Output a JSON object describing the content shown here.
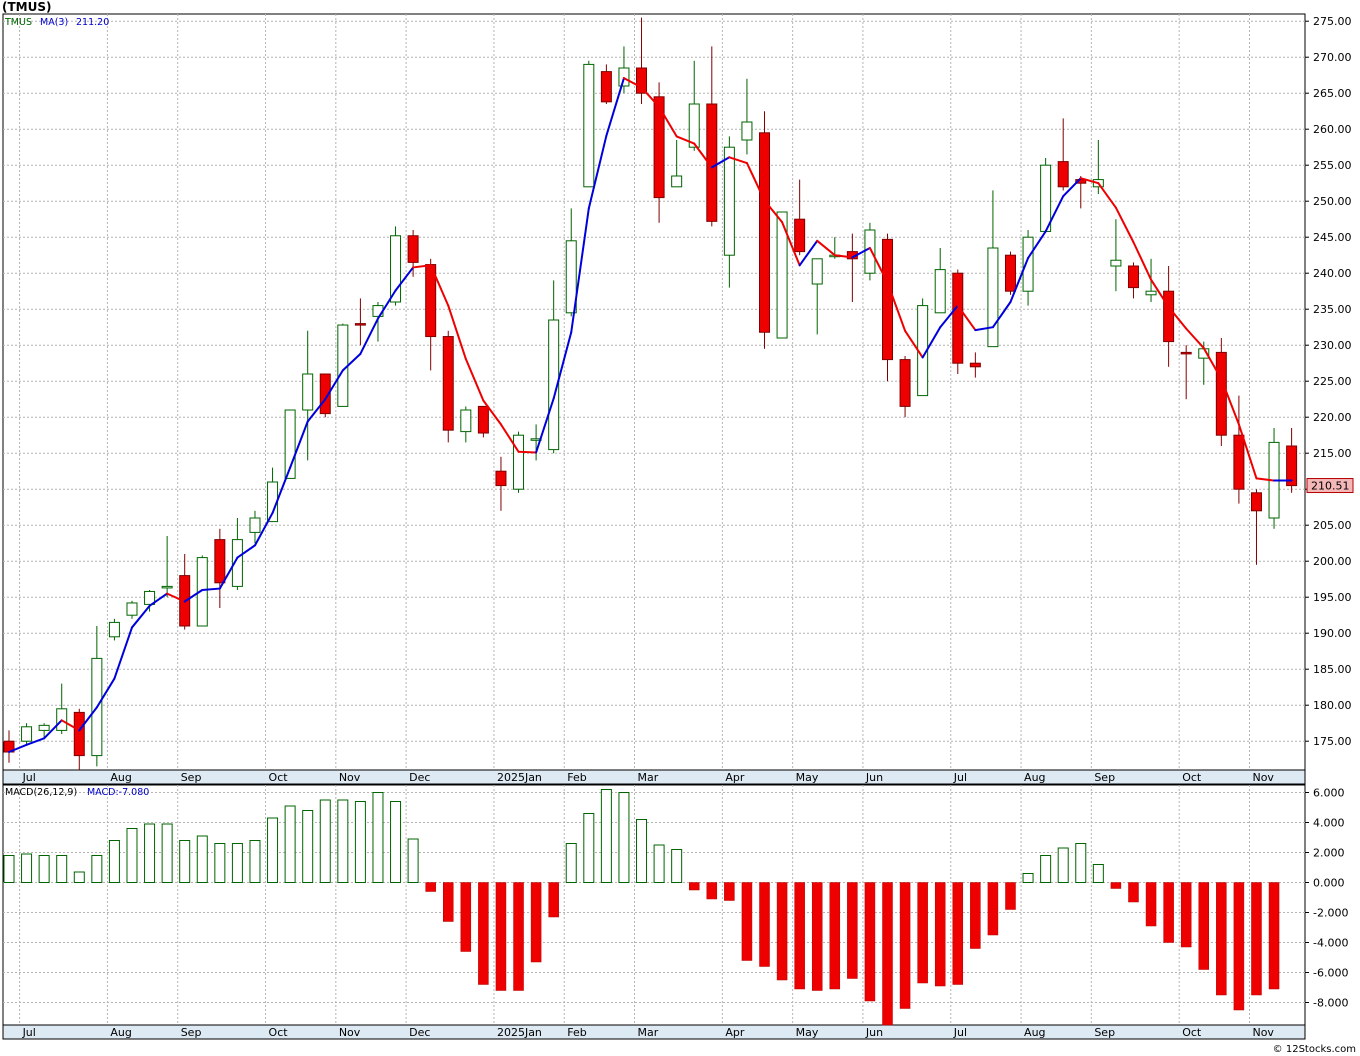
{
  "title": "(TMUS)",
  "credit": "© 12Stocks.com",
  "chart_data": [
    {
      "type": "candlestick",
      "legend": {
        "symbol": "TMUS",
        "ma_label": "MA(3)",
        "ma_value": "211.20"
      },
      "last_price_label": "210.51",
      "ylim": [
        171,
        276
      ],
      "y_ticks": [
        175,
        180,
        185,
        190,
        195,
        200,
        205,
        210,
        215,
        220,
        225,
        230,
        235,
        240,
        245,
        250,
        255,
        260,
        265,
        270,
        275
      ],
      "y_tick_labels": [
        "175.00",
        "180.00",
        "185.00",
        "190.00",
        "195.00",
        "200.00",
        "205.00",
        "210.00",
        "215.00",
        "220.00",
        "225.00",
        "230.00",
        "235.00",
        "240.00",
        "245.00",
        "250.00",
        "255.00",
        "260.00",
        "265.00",
        "270.00",
        "275.00"
      ],
      "month_labels": [
        {
          "label": "Jul",
          "week": 1
        },
        {
          "label": "Aug",
          "week": 6
        },
        {
          "label": "Sep",
          "week": 10
        },
        {
          "label": "Oct",
          "week": 15
        },
        {
          "label": "Nov",
          "week": 19
        },
        {
          "label": "Dec",
          "week": 23
        },
        {
          "label": "2025Jan",
          "week": 28
        },
        {
          "label": "Feb",
          "week": 32
        },
        {
          "label": "Mar",
          "week": 36
        },
        {
          "label": "Apr",
          "week": 41
        },
        {
          "label": "May",
          "week": 45
        },
        {
          "label": "Jun",
          "week": 49
        },
        {
          "label": "Jul",
          "week": 54
        },
        {
          "label": "Aug",
          "week": 58
        },
        {
          "label": "Sep",
          "week": 62
        },
        {
          "label": "Oct",
          "week": 67
        },
        {
          "label": "Nov",
          "week": 71
        }
      ],
      "candles": [
        {
          "o": 175,
          "h": 176.5,
          "l": 172,
          "c": 173.5
        },
        {
          "o": 175,
          "h": 177.5,
          "l": 174.5,
          "c": 177
        },
        {
          "o": 176.5,
          "h": 177.5,
          "l": 175.5,
          "c": 177.2
        },
        {
          "o": 176.5,
          "h": 183,
          "l": 176,
          "c": 179.5
        },
        {
          "o": 179,
          "h": 179.5,
          "l": 171,
          "c": 173
        },
        {
          "o": 173,
          "h": 191,
          "l": 171.5,
          "c": 186.5
        },
        {
          "o": 189.5,
          "h": 192,
          "l": 189,
          "c": 191.5
        },
        {
          "o": 192.5,
          "h": 194.5,
          "l": 192,
          "c": 194.2
        },
        {
          "o": 194,
          "h": 196,
          "l": 193,
          "c": 195.8
        },
        {
          "o": 196.5,
          "h": 203.5,
          "l": 195,
          "c": 196.5
        },
        {
          "o": 198,
          "h": 201,
          "l": 190.5,
          "c": 191
        },
        {
          "o": 191,
          "h": 200.8,
          "l": 191,
          "c": 200.5
        },
        {
          "o": 203,
          "h": 204.5,
          "l": 193.5,
          "c": 197
        },
        {
          "o": 196.5,
          "h": 206,
          "l": 196,
          "c": 203
        },
        {
          "o": 204,
          "h": 207,
          "l": 202.5,
          "c": 206
        },
        {
          "o": 205.5,
          "h": 213,
          "l": 205.5,
          "c": 211
        },
        {
          "o": 211.5,
          "h": 221,
          "l": 211.5,
          "c": 221
        },
        {
          "o": 221,
          "h": 232,
          "l": 214,
          "c": 226
        },
        {
          "o": 226,
          "h": 226,
          "l": 220,
          "c": 220.5
        },
        {
          "o": 221.5,
          "h": 233,
          "l": 221.5,
          "c": 232.8
        },
        {
          "o": 233,
          "h": 236.5,
          "l": 230,
          "c": 232.8
        },
        {
          "o": 234,
          "h": 236,
          "l": 230.5,
          "c": 235.5
        },
        {
          "o": 236,
          "h": 246.5,
          "l": 235.5,
          "c": 245.2
        },
        {
          "o": 245.2,
          "h": 246,
          "l": 239.5,
          "c": 241.5
        },
        {
          "o": 241.2,
          "h": 242,
          "l": 226.5,
          "c": 231.2
        },
        {
          "o": 231.2,
          "h": 232,
          "l": 216.5,
          "c": 218.2
        },
        {
          "o": 218,
          "h": 221.5,
          "l": 216.5,
          "c": 221
        },
        {
          "o": 221.5,
          "h": 221.5,
          "l": 217.2,
          "c": 217.8
        },
        {
          "o": 212.5,
          "h": 214.5,
          "l": 207,
          "c": 210.5
        },
        {
          "o": 210,
          "h": 218,
          "l": 209.5,
          "c": 217.5
        },
        {
          "o": 216.8,
          "h": 219,
          "l": 214,
          "c": 217
        },
        {
          "o": 215.5,
          "h": 239,
          "l": 215,
          "c": 233.5
        },
        {
          "o": 234.5,
          "h": 249,
          "l": 234,
          "c": 244.5
        },
        {
          "o": 252,
          "h": 269.5,
          "l": 252,
          "c": 269
        },
        {
          "o": 268,
          "h": 269,
          "l": 263.5,
          "c": 263.8
        },
        {
          "o": 266,
          "h": 271.5,
          "l": 265,
          "c": 268.5
        },
        {
          "o": 268.5,
          "h": 275.5,
          "l": 263.5,
          "c": 265
        },
        {
          "o": 264.5,
          "h": 266.5,
          "l": 247,
          "c": 250.5
        },
        {
          "o": 252,
          "h": 258.5,
          "l": 252,
          "c": 253.5
        },
        {
          "o": 257.5,
          "h": 269.5,
          "l": 257,
          "c": 263.5
        },
        {
          "o": 263.5,
          "h": 271.5,
          "l": 246.5,
          "c": 247.2
        },
        {
          "o": 242.5,
          "h": 259,
          "l": 238,
          "c": 257.5
        },
        {
          "o": 258.5,
          "h": 267,
          "l": 256.5,
          "c": 261
        },
        {
          "o": 259.5,
          "h": 262.5,
          "l": 229.5,
          "c": 231.8
        },
        {
          "o": 231,
          "h": 248.5,
          "l": 231,
          "c": 248.5
        },
        {
          "o": 247.5,
          "h": 253,
          "l": 242.5,
          "c": 243
        },
        {
          "o": 238.5,
          "h": 241.5,
          "l": 231.5,
          "c": 242
        },
        {
          "o": 242.5,
          "h": 245,
          "l": 242,
          "c": 242.5
        },
        {
          "o": 243,
          "h": 245.5,
          "l": 236,
          "c": 242
        },
        {
          "o": 240,
          "h": 247,
          "l": 239,
          "c": 246
        },
        {
          "o": 244.7,
          "h": 245.5,
          "l": 225,
          "c": 228
        },
        {
          "o": 228,
          "h": 228.5,
          "l": 220,
          "c": 221.5
        },
        {
          "o": 223,
          "h": 236.5,
          "l": 223,
          "c": 235.5
        },
        {
          "o": 234.5,
          "h": 243.5,
          "l": 234.5,
          "c": 240.5
        },
        {
          "o": 240,
          "h": 240.5,
          "l": 226,
          "c": 227.5
        },
        {
          "o": 227.5,
          "h": 229,
          "l": 225.5,
          "c": 227
        },
        {
          "o": 229.8,
          "h": 251.5,
          "l": 229.8,
          "c": 243.5
        },
        {
          "o": 242.5,
          "h": 243,
          "l": 237,
          "c": 237.5
        },
        {
          "o": 237.5,
          "h": 246,
          "l": 235.5,
          "c": 245
        },
        {
          "o": 245.8,
          "h": 256,
          "l": 245.8,
          "c": 255
        },
        {
          "o": 255.5,
          "h": 261.5,
          "l": 251.5,
          "c": 252
        },
        {
          "o": 253,
          "h": 253.5,
          "l": 249,
          "c": 252.5
        },
        {
          "o": 252,
          "h": 258.5,
          "l": 251,
          "c": 253
        },
        {
          "o": 241,
          "h": 247.5,
          "l": 237.5,
          "c": 241.8
        },
        {
          "o": 241,
          "h": 241.5,
          "l": 236.5,
          "c": 238
        },
        {
          "o": 237,
          "h": 242,
          "l": 236,
          "c": 237.5
        },
        {
          "o": 237.5,
          "h": 241,
          "l": 227,
          "c": 230.5
        },
        {
          "o": 229,
          "h": 230,
          "l": 222.5,
          "c": 228.8
        },
        {
          "o": 228.2,
          "h": 230.5,
          "l": 224.5,
          "c": 229.5
        },
        {
          "o": 229,
          "h": 231,
          "l": 216,
          "c": 217.5
        },
        {
          "o": 217.5,
          "h": 223,
          "l": 208,
          "c": 210
        },
        {
          "o": 209.5,
          "h": 210,
          "l": 199.5,
          "c": 207
        },
        {
          "o": 206,
          "h": 218.5,
          "l": 204.5,
          "c": 216.5
        },
        {
          "o": 216,
          "h": 218.5,
          "l": 209.5,
          "c": 210.5
        }
      ],
      "ma3": [
        173.5,
        174.5,
        175.4,
        177.9,
        176.5,
        179.7,
        183.7,
        190.8,
        193.8,
        195.5,
        194.4,
        196.0,
        196.2,
        200.5,
        202.2,
        206.7,
        213.0,
        219.4,
        222.5,
        226.5,
        228.8,
        233.7,
        237.6,
        240.8,
        241.1,
        235.5,
        228.1,
        222.3,
        219.0,
        215.2,
        215.1,
        222.6,
        231.8,
        249.0,
        259.1,
        267.1,
        265.8,
        263.1,
        259.0,
        258.0,
        254.7,
        256.1,
        255.3,
        250.1,
        247.1,
        241.1,
        244.5,
        242.5,
        242.2,
        243.5,
        238.7,
        232.0,
        228.3,
        232.5,
        235.5,
        232.1,
        232.5,
        236.0,
        242.1,
        245.8,
        250.7,
        253.2,
        252.5,
        249.1,
        244.3,
        239.1,
        235.3,
        232.3,
        229.6,
        225.3,
        219.0,
        211.5,
        211.2,
        211.2
      ],
      "ma_up": [
        true,
        true,
        true,
        true,
        false,
        true,
        true,
        true,
        true,
        true,
        false,
        true,
        true,
        true,
        true,
        true,
        true,
        true,
        true,
        true,
        true,
        true,
        true,
        true,
        false,
        false,
        false,
        false,
        false,
        false,
        false,
        true,
        true,
        true,
        true,
        true,
        false,
        false,
        false,
        false,
        false,
        true,
        false,
        false,
        false,
        false,
        true,
        false,
        false,
        true,
        false,
        false,
        false,
        true,
        true,
        false,
        true,
        true,
        true,
        true,
        true,
        true,
        false,
        false,
        false,
        false,
        false,
        false,
        false,
        false,
        false,
        false,
        false,
        true
      ],
      "macd_label": "MACD(26,12,9)",
      "macd_value_label": "MACD:-7.080",
      "macd_ylim": [
        -9.5,
        6.5
      ],
      "macd_ticks": [
        -8,
        -6,
        -4,
        -2,
        0,
        2,
        4,
        6
      ],
      "macd_tick_labels": [
        "-8.000",
        "-6.000",
        "-4.000",
        "-2.000",
        "0.000",
        "2.000",
        "4.000",
        "6.000"
      ],
      "macd_hist": [
        1.8,
        1.9,
        1.8,
        1.8,
        0.7,
        1.8,
        2.8,
        3.6,
        3.9,
        3.9,
        2.8,
        3.1,
        2.6,
        2.6,
        2.8,
        4.3,
        5.1,
        4.8,
        5.5,
        5.5,
        5.4,
        6.0,
        5.4,
        2.9,
        -0.6,
        -2.6,
        -4.6,
        -6.8,
        -7.2,
        -7.2,
        -5.3,
        -2.3,
        2.6,
        4.6,
        6.2,
        6.0,
        4.2,
        2.5,
        2.2,
        -0.5,
        -1.1,
        -1.2,
        -5.2,
        -5.6,
        -6.5,
        -7.1,
        -7.2,
        -7.1,
        -6.4,
        -7.9,
        -9.5,
        -8.4,
        -6.7,
        -6.9,
        -6.8,
        -4.4,
        -3.5,
        -1.8,
        0.6,
        1.8,
        2.3,
        2.6,
        1.2,
        -0.4,
        -1.3,
        -2.9,
        -4.0,
        -4.3,
        -5.8,
        -7.5,
        -8.5,
        -7.5,
        -7.1
      ]
    }
  ]
}
